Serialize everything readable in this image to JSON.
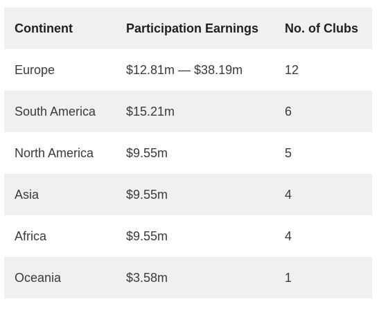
{
  "table": {
    "headers": [
      "Continent",
      "Participation Earnings",
      "No. of Clubs"
    ],
    "rows": [
      [
        "Europe",
        "$12.81m — $38.19m",
        "12"
      ],
      [
        "South America",
        "$15.21m",
        "6"
      ],
      [
        "North America",
        "$9.55m",
        "5"
      ],
      [
        "Asia",
        "$9.55m",
        "4"
      ],
      [
        "Africa",
        "$9.55m",
        "4"
      ],
      [
        "Oceania",
        "$3.58m",
        "1"
      ]
    ]
  }
}
